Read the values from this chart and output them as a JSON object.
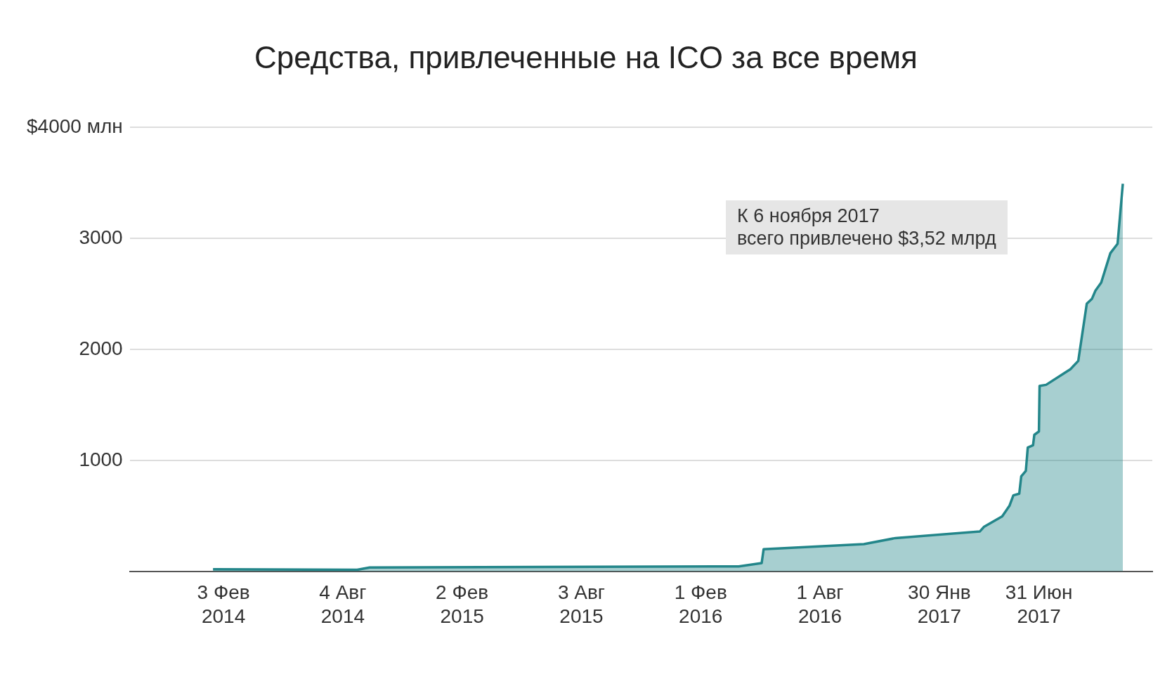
{
  "chart_data": {
    "type": "area",
    "title": "Средства, привлеченные на ICO за все время",
    "annotations": [
      "К 6 ноября 2017\nвсего привлечено $3,52 млрд"
    ],
    "x": [
      "2014-01-18",
      "2014-08-26",
      "2014-09-14",
      "2016-03-30",
      "2016-05-04",
      "2016-05-07",
      "2016-10-07",
      "2016-11-24",
      "2017-04-02",
      "2017-04-08",
      "2017-05-06",
      "2017-05-17",
      "2017-05-23",
      "2017-06-01",
      "2017-06-04",
      "2017-06-11",
      "2017-06-14",
      "2017-06-22",
      "2017-06-24",
      "2017-07-01",
      "2017-07-02",
      "2017-07-12",
      "2017-08-10",
      "2017-08-18",
      "2017-08-30",
      "2017-09-12",
      "2017-09-20",
      "2017-09-25",
      "2017-10-04",
      "2017-10-18",
      "2017-10-29",
      "2017-11-06"
    ],
    "series": [
      {
        "color": "#23868a",
        "values": [
          20,
          15,
          35,
          45,
          75,
          200,
          245,
          300,
          360,
          400,
          495,
          590,
          685,
          700,
          855,
          905,
          1115,
          1135,
          1230,
          1260,
          1670,
          1680,
          1790,
          1820,
          1895,
          2410,
          2455,
          2525,
          2600,
          2865,
          2950,
          3490
        ]
      }
    ],
    "xlim": [
      "2013-09-13",
      "2017-12-21"
    ],
    "xticks": [
      {
        "value": "2014-02-03",
        "label": "3 Фев 2014"
      },
      {
        "value": "2014-08-04",
        "label": "4 Авг 2014"
      },
      {
        "value": "2015-02-02",
        "label": "2 Фев 2015"
      },
      {
        "value": "2015-08-03",
        "label": "3 Авг 2015"
      },
      {
        "value": "2016-02-01",
        "label": "1 Фев 2016"
      },
      {
        "value": "2016-08-01",
        "label": "1 Авг 2016"
      },
      {
        "value": "2017-01-30",
        "label": "30 Янв 2017"
      },
      {
        "value": "2017-07-01",
        "label": "31 Июн 2017"
      }
    ],
    "ylim": [
      0,
      4000
    ],
    "yticks": [
      {
        "value": 0,
        "label": null
      },
      1000,
      2000,
      3000,
      {
        "value": 4000,
        "label": "$4000 млн"
      }
    ],
    "grid": "y",
    "legend": false,
    "marker": "none",
    "line_style": "solid"
  }
}
